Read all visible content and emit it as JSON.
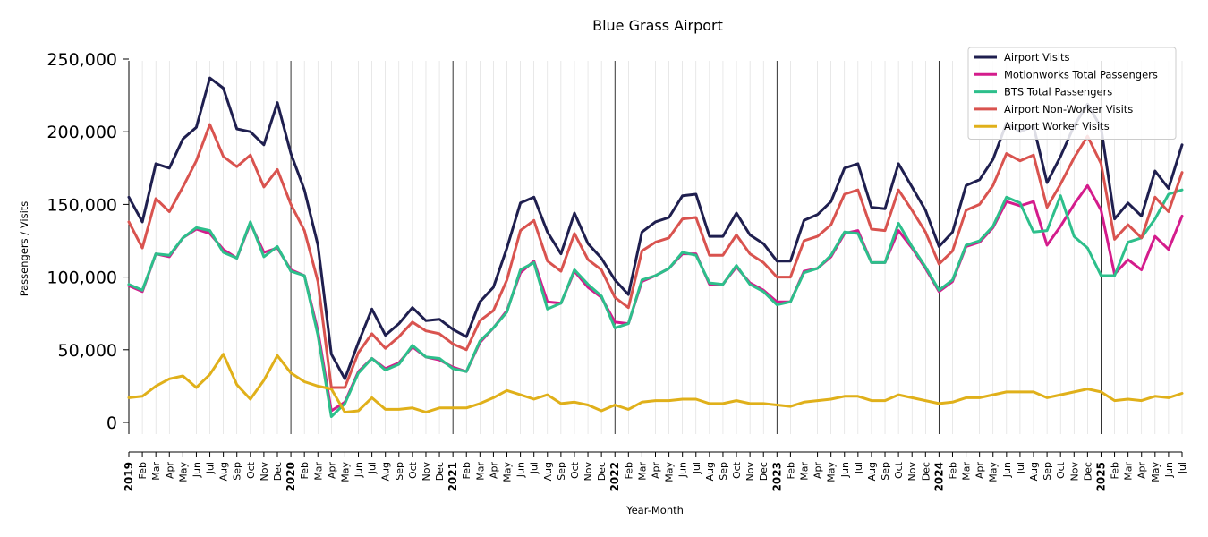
{
  "chart_data": {
    "type": "line",
    "title": "Blue Grass Airport",
    "xlabel": "Year-Month",
    "ylabel": "Passengers / Visits",
    "ylim": [
      0,
      250000
    ],
    "yticks": [
      "0",
      "50,000",
      "100,000",
      "150,000",
      "200,000",
      "250,000"
    ],
    "ytick_values": [
      0,
      50000,
      100000,
      150000,
      200000,
      250000
    ],
    "grid": "vertical monthly gridlines, darker lines at year boundaries",
    "legend_position": "top-right",
    "x": [
      "2019",
      "Feb",
      "Mar",
      "Apr",
      "May",
      "Jun",
      "Jul",
      "Aug",
      "Sep",
      "Oct",
      "Nov",
      "Dec",
      "2020",
      "Feb",
      "Mar",
      "Apr",
      "May",
      "Jun",
      "Jul",
      "Aug",
      "Sep",
      "Oct",
      "Nov",
      "Dec",
      "2021",
      "Feb",
      "Mar",
      "Apr",
      "May",
      "Jun",
      "Jul",
      "Aug",
      "Sep",
      "Oct",
      "Nov",
      "Dec",
      "2022",
      "Feb",
      "Mar",
      "Apr",
      "May",
      "Jun",
      "Jul",
      "Aug",
      "Sep",
      "Oct",
      "Nov",
      "Dec",
      "2023",
      "Feb",
      "Mar",
      "Apr",
      "May",
      "Jun",
      "Jul",
      "Aug",
      "Sep",
      "Oct",
      "Nov",
      "Dec",
      "2024",
      "Feb",
      "Mar",
      "Apr",
      "May",
      "Jun",
      "Jul",
      "Aug",
      "Sep",
      "Oct",
      "Nov",
      "Dec",
      "2025",
      "Feb",
      "Mar",
      "Apr",
      "May",
      "Jun",
      "Jul"
    ],
    "series": [
      {
        "name": "Airport Visits",
        "color": "#1f1f4f",
        "values": [
          155000,
          138000,
          178000,
          175000,
          195000,
          203000,
          237000,
          230000,
          202000,
          200000,
          191000,
          220000,
          185000,
          160000,
          122000,
          47000,
          30000,
          55000,
          78000,
          60000,
          68000,
          79000,
          70000,
          71000,
          64000,
          59000,
          83000,
          93000,
          120000,
          151000,
          155000,
          131000,
          116000,
          144000,
          123000,
          113000,
          98000,
          88000,
          131000,
          138000,
          141000,
          156000,
          157000,
          128000,
          128000,
          144000,
          129000,
          123000,
          111000,
          111000,
          139000,
          143000,
          152000,
          175000,
          178000,
          148000,
          147000,
          178000,
          162000,
          146000,
          121000,
          131000,
          163000,
          167000,
          181000,
          206000,
          200000,
          204000,
          165000,
          183000,
          204000,
          219000,
          203000,
          140000,
          151000,
          142000,
          173000,
          161000,
          191000
        ]
      },
      {
        "name": "Motionworks Total Passengers",
        "color": "#d41c8c",
        "values": [
          94000,
          90000,
          116000,
          114000,
          127000,
          133000,
          130000,
          119000,
          113000,
          137000,
          117000,
          120000,
          105000,
          101000,
          63000,
          8000,
          14000,
          35000,
          44000,
          37000,
          41000,
          52000,
          45000,
          43000,
          38000,
          35000,
          55000,
          65000,
          77000,
          103000,
          111000,
          83000,
          82000,
          104000,
          93000,
          86000,
          69000,
          68000,
          97000,
          101000,
          106000,
          116000,
          116000,
          95000,
          95000,
          107000,
          96000,
          91000,
          83000,
          83000,
          104000,
          106000,
          114000,
          130000,
          132000,
          110000,
          110000,
          132000,
          120000,
          106000,
          90000,
          97000,
          121000,
          124000,
          134000,
          152000,
          149000,
          152000,
          122000,
          135000,
          150000,
          163000,
          146000,
          102000,
          112000,
          105000,
          128000,
          119000,
          142000
        ]
      },
      {
        "name": "BTS Total Passengers",
        "color": "#2dbf8b",
        "values": [
          95000,
          91000,
          116000,
          115000,
          127000,
          134000,
          132000,
          117000,
          113000,
          138000,
          114000,
          121000,
          104000,
          101000,
          60000,
          4000,
          13000,
          34000,
          44000,
          36000,
          40000,
          53000,
          45000,
          44000,
          37000,
          35000,
          56000,
          65000,
          76000,
          105000,
          110000,
          78000,
          82000,
          105000,
          95000,
          87000,
          65000,
          68000,
          98000,
          101000,
          106000,
          117000,
          115000,
          96000,
          95000,
          108000,
          95000,
          90000,
          81000,
          83000,
          103000,
          106000,
          115000,
          131000,
          130000,
          110000,
          110000,
          137000,
          121000,
          107000,
          91000,
          98000,
          122000,
          125000,
          135000,
          155000,
          151000,
          131000,
          132000,
          156000,
          128000,
          120000,
          101000,
          101000,
          124000,
          127000,
          140000,
          157000,
          160000
        ]
      },
      {
        "name": "Airport Non-Worker Visits",
        "color": "#d9534f",
        "values": [
          138000,
          120000,
          154000,
          145000,
          162000,
          180000,
          205000,
          183000,
          176000,
          184000,
          162000,
          174000,
          150000,
          132000,
          97000,
          24000,
          24000,
          48000,
          61000,
          51000,
          59000,
          69000,
          63000,
          61000,
          54000,
          50000,
          70000,
          77000,
          98000,
          132000,
          139000,
          111000,
          104000,
          130000,
          112000,
          105000,
          86000,
          79000,
          118000,
          124000,
          127000,
          140000,
          141000,
          115000,
          115000,
          129000,
          116000,
          110000,
          100000,
          100000,
          125000,
          128000,
          136000,
          157000,
          160000,
          133000,
          132000,
          160000,
          146000,
          131000,
          109000,
          118000,
          146000,
          150000,
          163000,
          185000,
          180000,
          184000,
          148000,
          164000,
          182000,
          197000,
          178000,
          126000,
          136000,
          127000,
          155000,
          145000,
          172000
        ]
      },
      {
        "name": "Airport Worker Visits",
        "color": "#e0b01a",
        "values": [
          17000,
          18000,
          25000,
          30000,
          32000,
          24000,
          33000,
          47000,
          26000,
          16000,
          29000,
          46000,
          34000,
          28000,
          25000,
          23000,
          7000,
          8000,
          17000,
          9000,
          9000,
          10000,
          7000,
          10000,
          10000,
          10000,
          13000,
          17000,
          22000,
          19000,
          16000,
          19000,
          13000,
          14000,
          12000,
          8000,
          12000,
          9000,
          14000,
          15000,
          15000,
          16000,
          16000,
          13000,
          13000,
          15000,
          13000,
          13000,
          12000,
          11000,
          14000,
          15000,
          16000,
          18000,
          18000,
          15000,
          15000,
          19000,
          17000,
          15000,
          13000,
          14000,
          17000,
          17000,
          19000,
          21000,
          21000,
          21000,
          17000,
          19000,
          21000,
          23000,
          21000,
          15000,
          16000,
          15000,
          18000,
          17000,
          20000
        ]
      }
    ]
  }
}
